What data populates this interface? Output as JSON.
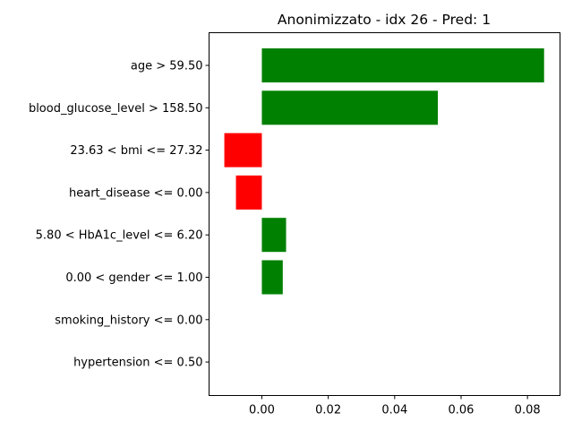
{
  "chart_data": {
    "type": "bar",
    "orientation": "horizontal",
    "title": "Anonimizzato - idx 26 - Pred: 1",
    "xlabel": "",
    "ylabel": "",
    "categories": [
      "age > 59.50",
      "blood_glucose_level > 158.50",
      "23.63 < bmi <= 27.32",
      "heart_disease <= 0.00",
      "5.80 < HbA1c_level <= 6.20",
      "0.00 < gender <= 1.00",
      "smoking_history <= 0.00",
      "hypertension <= 0.50"
    ],
    "values": [
      0.085,
      0.053,
      -0.0113,
      -0.0078,
      0.0073,
      0.0063,
      0.0,
      0.0
    ],
    "colors": [
      "#008000",
      "#008000",
      "#ff0000",
      "#ff0000",
      "#008000",
      "#008000",
      "#008000",
      "#008000"
    ],
    "xlim": [
      -0.0159,
      0.0898
    ],
    "xticks": [
      0.0,
      0.02,
      0.04,
      0.06,
      0.08
    ],
    "xtick_labels": [
      "0.00",
      "0.02",
      "0.04",
      "0.06",
      "0.08"
    ],
    "grid": false,
    "legend": "none"
  }
}
